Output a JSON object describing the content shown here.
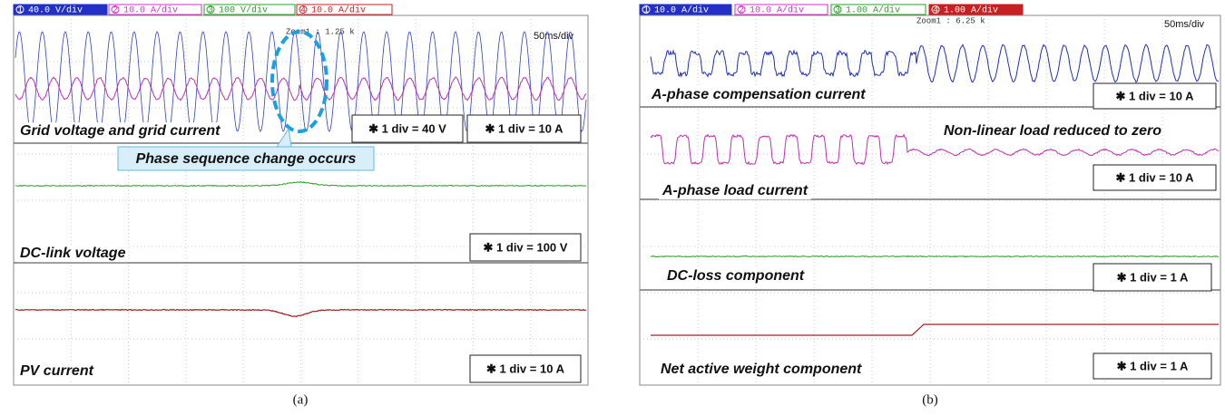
{
  "panels": [
    {
      "caption": "(a)",
      "channels": [
        {
          "number": "1",
          "scale": "40.0 V/div"
        },
        {
          "number": "2",
          "scale": "10.0 A/div"
        },
        {
          "number": "3",
          "scale": "100 V/div"
        },
        {
          "number": "4",
          "scale": "10.0 A/div"
        }
      ],
      "zoom": "Zoom1 : 1.25 k",
      "timebase": "50ms/div",
      "traces": [
        {
          "label": "Grid  voltage and grid current",
          "scales": [
            "✱ 1 div = 40 V",
            "✱ 1 div = 10 A"
          ]
        },
        {
          "label": "DC-link voltage",
          "scales": [
            "✱ 1 div = 100 V"
          ]
        },
        {
          "label": "PV current",
          "scales": [
            "✱ 1 div = 10 A"
          ]
        }
      ],
      "annotation": "Phase sequence change occurs"
    },
    {
      "caption": "(b)",
      "channels": [
        {
          "number": "1",
          "scale": "10.0 A/div"
        },
        {
          "number": "2",
          "scale": "10.0 A/div"
        },
        {
          "number": "3",
          "scale": "1.00 A/div"
        },
        {
          "number": "4",
          "scale": "1.00 A/div"
        }
      ],
      "zoom": "Zoom1 : 6.25 k",
      "timebase": "50ms/div",
      "traces": [
        {
          "label": "A-phase compensation current",
          "scales": [
            "✱ 1 div = 10 A"
          ]
        },
        {
          "label": "A-phase load current",
          "scales": [
            "✱ 1 div = 10 A"
          ]
        },
        {
          "label": "DC-loss component",
          "scales": [
            "✱ 1 div = 1 A"
          ]
        },
        {
          "label": "Net active weight component",
          "scales": [
            "✱ 1 div = 1 A"
          ]
        }
      ],
      "annotation": "Non-linear load reduced to zero"
    }
  ]
}
